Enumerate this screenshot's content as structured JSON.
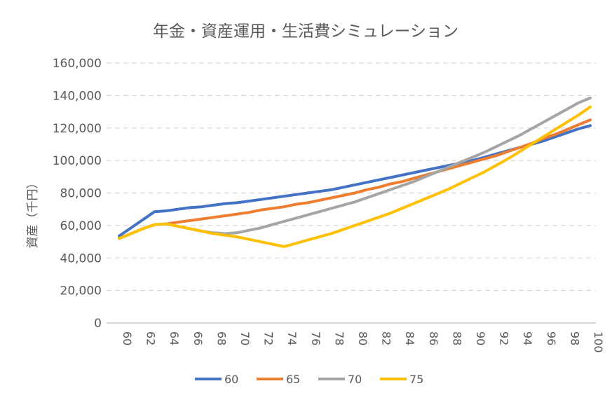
{
  "chart_data": {
    "type": "line",
    "title": "年金・資産運用・生活費シミュレーション",
    "ylabel": "資産（千円）",
    "xlabel": "",
    "ylim": [
      0,
      160000
    ],
    "yticks": [
      0,
      20000,
      40000,
      60000,
      80000,
      100000,
      120000,
      140000,
      160000
    ],
    "ytick_labels": [
      "0",
      "20,000",
      "40,000",
      "60,000",
      "80,000",
      "100,000",
      "120,000",
      "140,000",
      "160,000"
    ],
    "x": [
      60,
      61,
      62,
      63,
      64,
      65,
      66,
      67,
      68,
      69,
      70,
      71,
      72,
      73,
      74,
      75,
      76,
      77,
      78,
      79,
      80,
      81,
      82,
      83,
      84,
      85,
      86,
      87,
      88,
      89,
      90,
      91,
      92,
      93,
      94,
      95,
      96,
      97,
      98,
      99,
      100
    ],
    "xticks": [
      "60",
      "62",
      "64",
      "66",
      "68",
      "70",
      "72",
      "74",
      "76",
      "78",
      "80",
      "82",
      "84",
      "86",
      "88",
      "90",
      "92",
      "94",
      "96",
      "98",
      "100"
    ],
    "grid": true,
    "legend_position": "bottom",
    "series": [
      {
        "name": "60",
        "color": "#4472C4",
        "values": [
          53500,
          58500,
          63500,
          68500,
          69000,
          70000,
          71000,
          71500,
          72500,
          73500,
          74000,
          75000,
          76000,
          77000,
          78000,
          79000,
          80000,
          81000,
          82000,
          83500,
          85000,
          86500,
          88000,
          89500,
          91000,
          92500,
          94000,
          95500,
          97000,
          98500,
          100000,
          102000,
          104000,
          106000,
          108000,
          110000,
          112000,
          114500,
          117000,
          119500,
          121500
        ]
      },
      {
        "name": "65",
        "color": "#ED7D31",
        "values": [
          52000,
          55000,
          58000,
          60500,
          61000,
          62000,
          63000,
          64000,
          65000,
          66000,
          67000,
          68000,
          69500,
          70500,
          71500,
          73000,
          74000,
          75500,
          77000,
          78500,
          80000,
          82000,
          83500,
          85500,
          87000,
          89000,
          91000,
          93000,
          95000,
          97000,
          99000,
          101000,
          103000,
          105500,
          108000,
          110500,
          113500,
          116000,
          119000,
          122000,
          125000
        ]
      },
      {
        "name": "70",
        "color": "#A5A5A5",
        "values": [
          52000,
          55000,
          58000,
          60500,
          61000,
          59500,
          58000,
          56500,
          55500,
          55000,
          55500,
          57000,
          58500,
          60500,
          62500,
          64500,
          66500,
          68500,
          70500,
          72500,
          74500,
          77000,
          79500,
          82000,
          84500,
          87000,
          90000,
          93000,
          96000,
          99000,
          102000,
          105000,
          108500,
          112000,
          115500,
          119500,
          123500,
          127500,
          131500,
          135500,
          138500
        ]
      },
      {
        "name": "75",
        "color": "#FFC000",
        "values": [
          52000,
          55000,
          58000,
          60500,
          61000,
          59500,
          58000,
          56500,
          55000,
          54000,
          53000,
          51500,
          50000,
          48500,
          47000,
          49000,
          51000,
          53000,
          55000,
          57500,
          60000,
          62500,
          65000,
          67500,
          70500,
          73500,
          76500,
          79500,
          82500,
          86000,
          89500,
          93000,
          97000,
          101000,
          105500,
          110000,
          114500,
          119000,
          123500,
          128000,
          133000
        ]
      }
    ]
  }
}
